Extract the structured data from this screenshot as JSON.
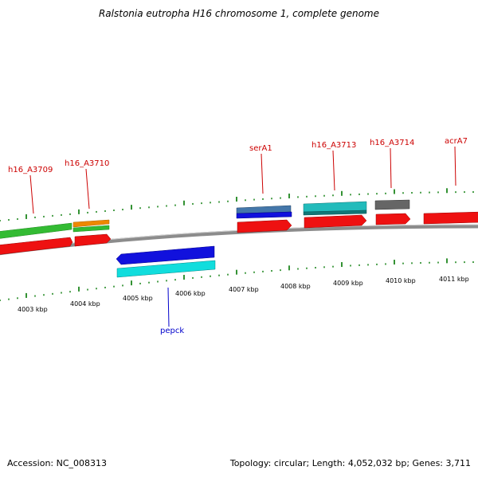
{
  "title": "Ralstonia eutropha H16 chromosome 1, complete genome",
  "footer": {
    "accession": "Accession: NC_008313",
    "topology": "Topology: circular; Length: 4,052,032 bp; Genes: 3,711"
  },
  "colors": {
    "backbone": "#8c8c8c",
    "tick": "#007700",
    "label_forward": "#cc0000",
    "label_reverse": "#0000cc",
    "cds": "#ee1111",
    "green": "#33bb33",
    "orange": "#ee8800",
    "blue": "#1111dd",
    "steelblue": "#4477aa",
    "teal": "#22bbbb",
    "gray": "#666666",
    "cyan": "#11dddd"
  },
  "kbp_labels": [
    {
      "text": "4003 kbp"
    },
    {
      "text": "4004 kbp"
    },
    {
      "text": "4005 kbp"
    },
    {
      "text": "4006 kbp"
    },
    {
      "text": "4007 kbp"
    },
    {
      "text": "4008 kbp"
    },
    {
      "text": "4009 kbp"
    },
    {
      "text": "4010 kbp"
    },
    {
      "text": "4011 kbp"
    }
  ],
  "gene_labels": [
    {
      "text": "h16_A3709",
      "strand": "forward"
    },
    {
      "text": "h16_A3710",
      "strand": "forward"
    },
    {
      "text": "serA1",
      "strand": "forward"
    },
    {
      "text": "h16_A3713",
      "strand": "forward"
    },
    {
      "text": "h16_A3714",
      "strand": "forward"
    },
    {
      "text": "acrA7",
      "strand": "forward"
    },
    {
      "text": "pepck",
      "strand": "reverse"
    }
  ]
}
